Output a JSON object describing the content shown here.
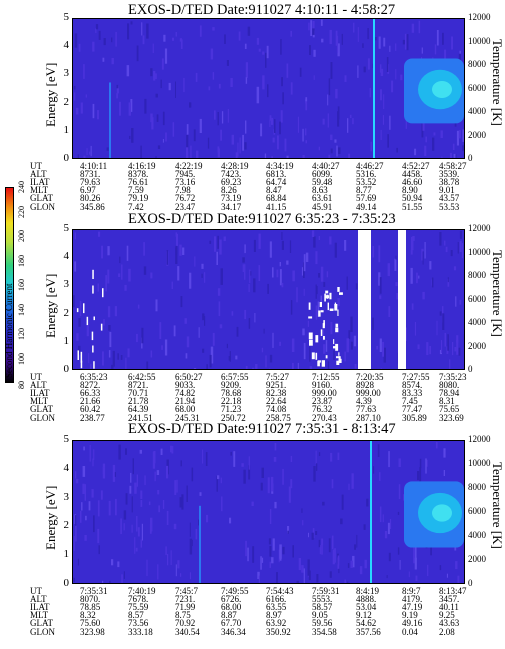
{
  "panels": [
    {
      "title": "EXOS-D/TED   Date:911027  4:10:11 - 4:58:27",
      "ut": [
        "4:10:11",
        "4:16:19",
        "4:22:19",
        "4:28:19",
        "4:34:19",
        "4:40:27",
        "4:46:27",
        "4:52:27",
        "4:58:27"
      ],
      "rows": [
        {
          "label": "ALT",
          "values": [
            "8731.",
            "8378.",
            "7945.",
            "7423.",
            "6813.",
            "6099.",
            "5316.",
            "4458.",
            "3539."
          ]
        },
        {
          "label": "ILAT",
          "values": [
            "79.63",
            "76.61",
            "73.16",
            "69.23",
            "64.74",
            "59.48",
            "53.52",
            "46.60",
            "38.78"
          ]
        },
        {
          "label": "MLT",
          "values": [
            "6.97",
            "7.59",
            "7.98",
            "8.26",
            "8.47",
            "8.63",
            "8.77",
            "8.90",
            "9.01"
          ]
        },
        {
          "label": "GLAT",
          "values": [
            "80.26",
            "79.19",
            "76.72",
            "73.19",
            "68.84",
            "63.61",
            "57.69",
            "50.94",
            "43.57"
          ]
        },
        {
          "label": "GLON",
          "values": [
            "345.86",
            "7.42",
            "23.47",
            "34.17",
            "41.15",
            "45.91",
            "49.14",
            "51.55",
            "53.53"
          ]
        }
      ]
    },
    {
      "title": "EXOS-D/TED   Date:911027  6:35:23 - 7:35:23",
      "ut": [
        "6:35:23",
        "6:42:55",
        "6:50:27",
        "6:57:55",
        "7:5:27",
        "7:12:55",
        "7:20:35",
        "7:27:55",
        "7:35:23"
      ],
      "rows": [
        {
          "label": "ALT",
          "values": [
            "8272.",
            "8721.",
            "9033.",
            "9209.",
            "9251.",
            "9160.",
            "8928",
            "8574.",
            "8080."
          ]
        },
        {
          "label": "ILAT",
          "values": [
            "66.33",
            "70.71",
            "74.82",
            "78.68",
            "82.38",
            "999.00",
            "999.00",
            "83.33",
            "78.94"
          ]
        },
        {
          "label": "MLT",
          "values": [
            "21.66",
            "21.78",
            "21.94",
            "22.18",
            "22.64",
            "23.87",
            "4.39",
            "7.45",
            "8.31"
          ]
        },
        {
          "label": "GLAT",
          "values": [
            "60.42",
            "64.39",
            "68.00",
            "71.23",
            "74.08",
            "76.32",
            "77.63",
            "77.47",
            "75.65"
          ]
        },
        {
          "label": "GLON",
          "values": [
            "238.77",
            "241.51",
            "245.31",
            "250.72",
            "258.75",
            "270.43",
            "287.10",
            "305.89",
            "323.69"
          ]
        }
      ]
    },
    {
      "title": "EXOS-D/TED   Date:911027  7:35:31 - 8:13:47",
      "ut": [
        "7:35:31",
        "7:40:19",
        "7:45:7",
        "7:49:55",
        "7:54:43",
        "7:59:31",
        "8:4:19",
        "8:9:7",
        "8:13:47"
      ],
      "rows": [
        {
          "label": "ALT",
          "values": [
            "8070.",
            "7678.",
            "7231.",
            "6726.",
            "6166.",
            "5553.",
            "4888.",
            "4179.",
            "3457."
          ]
        },
        {
          "label": "ILAT",
          "values": [
            "78.85",
            "75.59",
            "71.99",
            "68.00",
            "63.55",
            "58.57",
            "53.04",
            "47.19",
            "40.11"
          ]
        },
        {
          "label": "MLT",
          "values": [
            "8.32",
            "8.57",
            "8.75",
            "8.87",
            "8.97",
            "9.05",
            "9.12",
            "9.19",
            "9.25"
          ]
        },
        {
          "label": "GLAT",
          "values": [
            "75.60",
            "73.56",
            "70.92",
            "67.70",
            "63.92",
            "59.56",
            "54.62",
            "49.16",
            "43.63"
          ]
        },
        {
          "label": "GLON",
          "values": [
            "323.98",
            "333.18",
            "340.54",
            "346.34",
            "350.92",
            "354.58",
            "357.56",
            "0.04",
            "2.08"
          ]
        }
      ]
    }
  ],
  "ut_label": "UT",
  "left_axis": {
    "label": "Energy [eV]",
    "ticks": [
      "0",
      "1",
      "2",
      "3",
      "4",
      "5"
    ]
  },
  "right_axis": {
    "label": "Temperature [K]",
    "ticks": [
      "0",
      "2000",
      "4000",
      "6000",
      "8000",
      "10000",
      "12000"
    ]
  },
  "colorbar": {
    "label": "Second Harmonic Current",
    "ticks": [
      "80",
      "100",
      "120",
      "140",
      "160",
      "180",
      "200",
      "220",
      "240"
    ]
  },
  "colors": {
    "background": "#3a2ad0",
    "hot": "#28d8ff",
    "warm": "#2a78f0",
    "gap": "#ffffff"
  },
  "chart_data": {
    "type": "heatmap",
    "title": "EXOS-D/TED",
    "ylabel": "Energy [eV]",
    "ylabel_right": "Temperature [K]",
    "ylim": [
      0,
      5
    ],
    "ylim_right": [
      0,
      12000
    ],
    "colorbar_label": "Second Harmonic Current",
    "colorbar_range": [
      80,
      240
    ]
  }
}
